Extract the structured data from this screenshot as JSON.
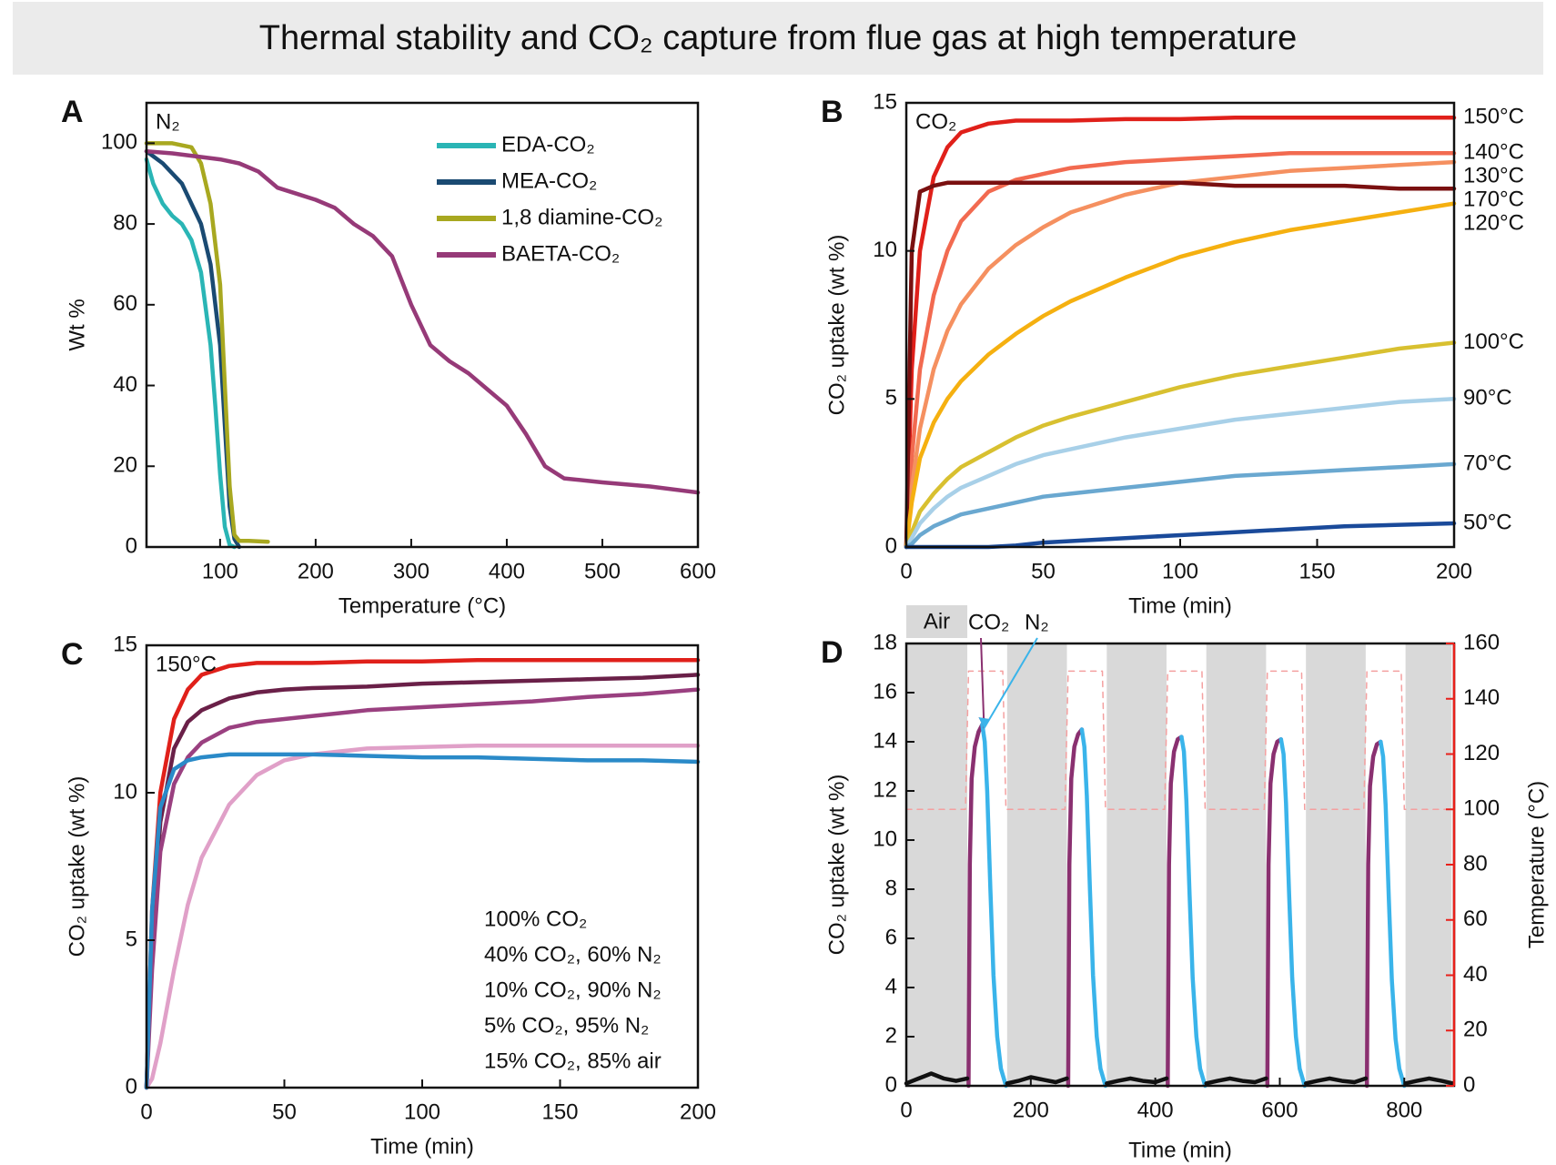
{
  "title": "Thermal stability and CO₂ capture from flue gas at high temperature",
  "chart_data": [
    {
      "panel": "A",
      "type": "line",
      "xlabel": "Temperature (°C)",
      "ylabel": "Wt %",
      "annotations": [
        "N₂"
      ],
      "xlim": [
        23,
        600
      ],
      "xticks": [
        100,
        200,
        300,
        400,
        500,
        600
      ],
      "ylim": [
        0,
        110
      ],
      "yticks": [
        0,
        20,
        40,
        60,
        80,
        100
      ],
      "legend": "upper right",
      "series": [
        {
          "name": "EDA-CO₂",
          "color": "#2ab5b5",
          "x": [
            23,
            30,
            40,
            50,
            60,
            70,
            80,
            90,
            95,
            100,
            105,
            110,
            115
          ],
          "values": [
            96,
            90,
            85,
            82,
            80,
            76,
            68,
            50,
            35,
            18,
            5,
            0.5,
            0
          ]
        },
        {
          "name": "MEA-CO₂",
          "color": "#1a4a72",
          "x": [
            23,
            40,
            60,
            80,
            90,
            100,
            105,
            110,
            115,
            120
          ],
          "values": [
            98,
            95,
            90,
            80,
            70,
            50,
            30,
            10,
            2,
            0
          ]
        },
        {
          "name": "1,8 diamine-CO₂",
          "color": "#a8a820",
          "x": [
            23,
            50,
            70,
            80,
            90,
            100,
            105,
            110,
            115,
            120,
            130,
            150
          ],
          "values": [
            100,
            100,
            99,
            95,
            85,
            65,
            40,
            15,
            3,
            1.5,
            1.5,
            1.3
          ]
        },
        {
          "name": "BAETA-CO₂",
          "color": "#963a78",
          "x": [
            23,
            50,
            100,
            120,
            140,
            160,
            180,
            200,
            220,
            240,
            260,
            280,
            300,
            320,
            340,
            360,
            380,
            400,
            420,
            440,
            460,
            500,
            550,
            600
          ],
          "values": [
            98,
            97.5,
            96,
            95,
            93,
            89,
            87.5,
            86,
            84,
            80,
            77,
            72,
            60,
            50,
            46,
            43,
            39,
            35,
            28,
            20,
            17,
            16,
            15,
            13.5
          ]
        }
      ]
    },
    {
      "panel": "B",
      "type": "line",
      "xlabel": "Time (min)",
      "ylabel": "CO₂ uptake (wt %)",
      "annotations": [
        "CO₂"
      ],
      "xlim": [
        0,
        200
      ],
      "xticks": [
        0,
        50,
        100,
        150,
        200
      ],
      "ylim": [
        0,
        15
      ],
      "yticks": [
        0,
        5,
        10,
        15
      ],
      "legend": "line end",
      "x": [
        0,
        2,
        5,
        10,
        15,
        20,
        30,
        40,
        50,
        60,
        80,
        100,
        120,
        140,
        160,
        180,
        200
      ],
      "series": [
        {
          "name": "150°C",
          "color": "#e0201a",
          "values": [
            0,
            6,
            10,
            12.5,
            13.5,
            14,
            14.3,
            14.4,
            14.4,
            14.4,
            14.45,
            14.45,
            14.5,
            14.5,
            14.5,
            14.5,
            14.5
          ]
        },
        {
          "name": "140°C",
          "color": "#f26a50",
          "values": [
            0,
            3,
            6,
            8.5,
            10,
            11,
            12,
            12.4,
            12.6,
            12.8,
            13,
            13.1,
            13.2,
            13.3,
            13.3,
            13.3,
            13.3
          ]
        },
        {
          "name": "130°C",
          "color": "#f59060",
          "values": [
            0,
            2,
            4,
            6,
            7.3,
            8.2,
            9.4,
            10.2,
            10.8,
            11.3,
            11.9,
            12.3,
            12.5,
            12.7,
            12.8,
            12.9,
            13
          ]
        },
        {
          "name": "170°C",
          "color": "#7a1010",
          "values": [
            0,
            10,
            12,
            12.2,
            12.3,
            12.3,
            12.3,
            12.3,
            12.3,
            12.3,
            12.3,
            12.3,
            12.2,
            12.2,
            12.2,
            12.1,
            12.1
          ]
        },
        {
          "name": "120°C",
          "color": "#f5b010",
          "values": [
            0,
            1.5,
            3,
            4.2,
            5,
            5.6,
            6.5,
            7.2,
            7.8,
            8.3,
            9.1,
            9.8,
            10.3,
            10.7,
            11,
            11.3,
            11.6
          ]
        },
        {
          "name": "100°C",
          "color": "#d8c030",
          "values": [
            0,
            0.5,
            1.2,
            1.8,
            2.3,
            2.7,
            3.2,
            3.7,
            4.1,
            4.4,
            4.9,
            5.4,
            5.8,
            6.1,
            6.4,
            6.7,
            6.9
          ]
        },
        {
          "name": "90°C",
          "color": "#a8d0e8",
          "values": [
            0,
            0.3,
            0.8,
            1.3,
            1.7,
            2,
            2.4,
            2.8,
            3.1,
            3.3,
            3.7,
            4,
            4.3,
            4.5,
            4.7,
            4.9,
            5
          ]
        },
        {
          "name": "70°C",
          "color": "#6aa8d0",
          "values": [
            0,
            0.1,
            0.4,
            0.7,
            0.9,
            1.1,
            1.3,
            1.5,
            1.7,
            1.8,
            2,
            2.2,
            2.4,
            2.5,
            2.6,
            2.7,
            2.8
          ]
        },
        {
          "name": "50°C",
          "color": "#1a4a9a",
          "values": [
            0,
            0,
            0,
            0,
            0,
            0,
            0,
            0.05,
            0.15,
            0.2,
            0.3,
            0.4,
            0.5,
            0.6,
            0.7,
            0.75,
            0.8
          ]
        }
      ]
    },
    {
      "panel": "C",
      "type": "line",
      "xlabel": "Time (min)",
      "ylabel": "CO₂ uptake (wt %)",
      "annotations": [
        "150°C"
      ],
      "xlim": [
        0,
        200
      ],
      "xticks": [
        0,
        50,
        100,
        150,
        200
      ],
      "ylim": [
        0,
        15
      ],
      "yticks": [
        0,
        5,
        10,
        15
      ],
      "legend": "lower right",
      "legend_markers": false,
      "x": [
        0,
        2,
        5,
        10,
        15,
        20,
        30,
        40,
        50,
        60,
        80,
        100,
        120,
        140,
        160,
        180,
        200
      ],
      "series": [
        {
          "name": "100% CO₂",
          "color": "#e0201a",
          "values": [
            0,
            6,
            10,
            12.5,
            13.5,
            14,
            14.3,
            14.4,
            14.4,
            14.4,
            14.45,
            14.45,
            14.5,
            14.5,
            14.5,
            14.5,
            14.5
          ]
        },
        {
          "name": "40% CO₂, 60% N₂",
          "color": "#6a2048",
          "values": [
            0,
            5,
            9,
            11.5,
            12.4,
            12.8,
            13.2,
            13.4,
            13.5,
            13.55,
            13.6,
            13.7,
            13.75,
            13.8,
            13.85,
            13.9,
            14
          ]
        },
        {
          "name": "10% CO₂, 90% N₂",
          "color": "#9a4080",
          "values": [
            0,
            4,
            8,
            10.3,
            11.2,
            11.7,
            12.2,
            12.4,
            12.5,
            12.6,
            12.8,
            12.9,
            13,
            13.1,
            13.25,
            13.35,
            13.5
          ]
        },
        {
          "name": "5% CO₂, 95% N₂",
          "color": "#e0a0c8",
          "values": [
            0,
            0.3,
            1.5,
            4,
            6.2,
            7.8,
            9.6,
            10.6,
            11.1,
            11.3,
            11.5,
            11.55,
            11.6,
            11.6,
            11.6,
            11.6,
            11.6
          ]
        },
        {
          "name": "15% CO₂, 85% air",
          "color": "#2a8ac8",
          "values": [
            0,
            6,
            9.5,
            10.8,
            11.1,
            11.2,
            11.3,
            11.3,
            11.3,
            11.3,
            11.25,
            11.2,
            11.2,
            11.15,
            11.1,
            11.1,
            11.05
          ]
        }
      ]
    },
    {
      "panel": "D",
      "type": "line",
      "xlabel": "Time (min)",
      "ylabel": "CO₂ uptake (wt %)",
      "y2label": "Temperature (°C)",
      "y2color": "#e8201a",
      "xlim": [
        0,
        880
      ],
      "xticks": [
        0,
        200,
        400,
        600,
        800
      ],
      "ylim": [
        0,
        18
      ],
      "yticks": [
        0,
        2,
        4,
        6,
        8,
        10,
        12,
        14,
        16,
        18
      ],
      "y2lim": [
        0,
        160
      ],
      "y2ticks": [
        0,
        20,
        40,
        60,
        80,
        100,
        120,
        140,
        160
      ],
      "band_label": "Air",
      "bands": [
        [
          0,
          98
        ],
        [
          162,
          258
        ],
        [
          322,
          418
        ],
        [
          482,
          578
        ],
        [
          642,
          738
        ],
        [
          802,
          876
        ]
      ],
      "series": [
        {
          "name": "CO₂",
          "color": "#8a3070",
          "x": [
            100,
            102,
            105,
            110,
            116,
            122,
            123,
            260,
            262,
            265,
            270,
            276,
            282,
            283,
            420,
            422,
            425,
            430,
            436,
            442,
            443,
            580,
            582,
            585,
            590,
            596,
            602,
            603,
            740,
            742,
            745,
            750,
            756,
            762
          ],
          "values": [
            0,
            9,
            12.5,
            13.8,
            14.4,
            14.7,
            null,
            0,
            9,
            12.5,
            13.8,
            14.3,
            14.5,
            null,
            0,
            9,
            12.3,
            13.6,
            14.1,
            14.2,
            null,
            0,
            9,
            12.3,
            13.5,
            14,
            14.1,
            null,
            0,
            9,
            12.2,
            13.4,
            13.9,
            14.0
          ]
        },
        {
          "name": "N₂",
          "color": "#3ab4ea",
          "x": [
            122,
            126,
            130,
            135,
            140,
            146,
            152,
            160,
            161,
            282,
            286,
            290,
            295,
            300,
            306,
            312,
            320,
            321,
            442,
            446,
            450,
            455,
            460,
            466,
            472,
            480,
            481,
            602,
            606,
            610,
            615,
            620,
            626,
            632,
            640,
            641,
            762,
            766,
            770,
            775,
            780,
            786,
            792,
            800
          ],
          "values": [
            14.7,
            14,
            12,
            8,
            4.5,
            2,
            0.7,
            0,
            null,
            14.5,
            13.8,
            11.8,
            8,
            4.5,
            2,
            0.7,
            0,
            null,
            14.2,
            13.6,
            11.6,
            7.8,
            4.4,
            2,
            0.7,
            0,
            null,
            14.1,
            13.5,
            11.5,
            7.8,
            4.4,
            2,
            0.7,
            0,
            null,
            14.0,
            13.4,
            11.4,
            7.7,
            4.3,
            1.9,
            0.7,
            0
          ]
        },
        {
          "color": "#111111",
          "x": [
            0,
            20,
            40,
            60,
            80,
            98,
            99,
            162,
            180,
            200,
            220,
            240,
            258,
            259,
            322,
            340,
            360,
            380,
            400,
            418,
            419,
            482,
            500,
            520,
            540,
            560,
            578,
            579,
            642,
            660,
            680,
            700,
            720,
            738,
            739,
            802,
            820,
            840,
            860,
            878
          ],
          "values": [
            0.1,
            0.3,
            0.5,
            0.3,
            0.2,
            0.3,
            null,
            0.1,
            0.2,
            0.35,
            0.25,
            0.15,
            0.3,
            null,
            0.1,
            0.2,
            0.3,
            0.2,
            0.15,
            0.3,
            null,
            0.1,
            0.2,
            0.3,
            0.2,
            0.15,
            0.3,
            null,
            0.1,
            0.2,
            0.3,
            0.2,
            0.15,
            0.3,
            null,
            0.1,
            0.2,
            0.3,
            0.2,
            0.1
          ]
        },
        {
          "color": "#f4a0a0",
          "axis": "y2",
          "linestyle": "dashed",
          "x": [
            0,
            95,
            100,
            155,
            160,
            255,
            260,
            315,
            320,
            415,
            420,
            475,
            480,
            575,
            580,
            635,
            640,
            735,
            740,
            795,
            800,
            880
          ],
          "values": [
            100,
            100,
            150,
            150,
            100,
            100,
            150,
            150,
            100,
            100,
            150,
            150,
            100,
            100,
            150,
            150,
            100,
            100,
            150,
            150,
            100,
            100
          ]
        }
      ]
    }
  ]
}
